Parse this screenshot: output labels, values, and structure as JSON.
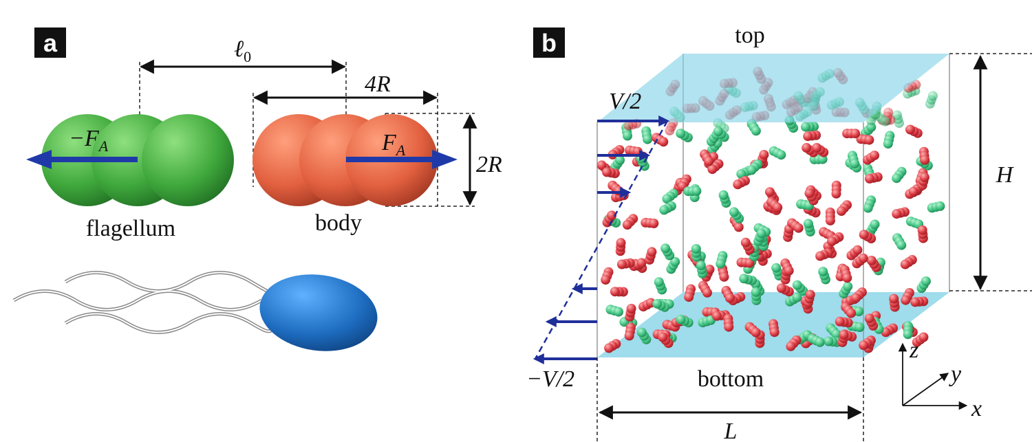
{
  "panel_a": {
    "label": "a",
    "spacing": {
      "main": "ℓ",
      "sub": "0"
    },
    "length": "4R",
    "width": "2R",
    "flagellum_force": {
      "main": "−F",
      "sub": "A"
    },
    "body_force": {
      "main": "F",
      "sub": "A"
    },
    "flagellum": "flagellum",
    "body": "body"
  },
  "panel_b": {
    "label": "b",
    "top": "top",
    "bottom": "bottom",
    "upper_velocity": "V/2",
    "lower_velocity": "−V/2",
    "height": "H",
    "box_length": "L",
    "axes": {
      "z": "z",
      "y": "y",
      "x": "x"
    }
  }
}
